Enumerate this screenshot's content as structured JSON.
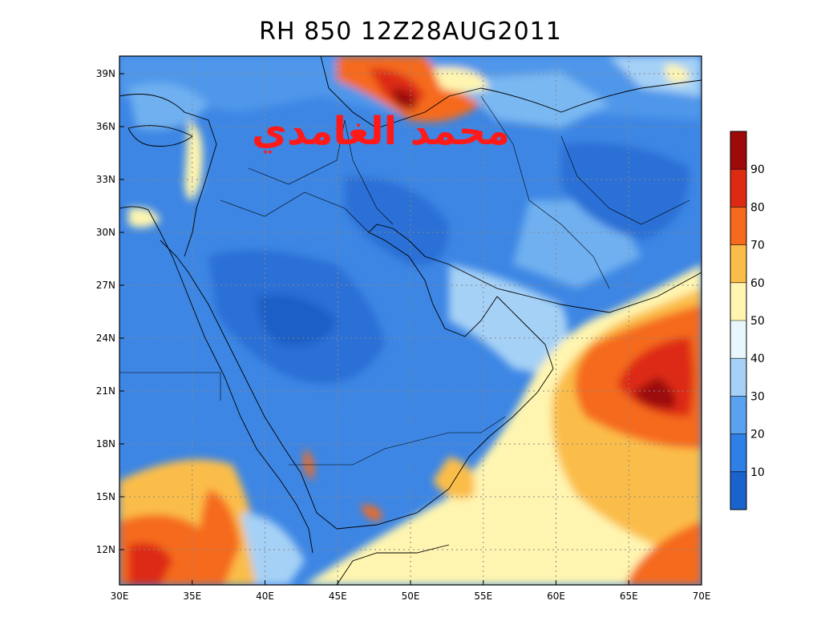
{
  "title": "RH 850 12Z28AUG2011",
  "signature": "محمد الغامدي",
  "map": {
    "lon_range": [
      30,
      70
    ],
    "lat_range": [
      10,
      40
    ],
    "lon_ticks": [
      "30E",
      "35E",
      "40E",
      "45E",
      "50E",
      "55E",
      "60E",
      "65E",
      "70E"
    ],
    "lat_ticks": [
      "12N",
      "15N",
      "18N",
      "21N",
      "24N",
      "27N",
      "30N",
      "33N",
      "36N",
      "39N"
    ],
    "grid": true
  },
  "colorbar": {
    "labels": [
      "10",
      "20",
      "30",
      "40",
      "50",
      "60",
      "70",
      "80",
      "90"
    ],
    "colors": [
      "#1a63cc",
      "#2e7fe6",
      "#5aa2f0",
      "#a6d1f6",
      "#e8f7fb",
      "#fff5b0",
      "#fbbd4a",
      "#f56a1c",
      "#dd2a12",
      "#9c0a0a"
    ]
  },
  "colors": {
    "background": "#3d86e4",
    "land_blue_dark": "#2a6fd6",
    "ocean_warm": "#f3a23a"
  }
}
